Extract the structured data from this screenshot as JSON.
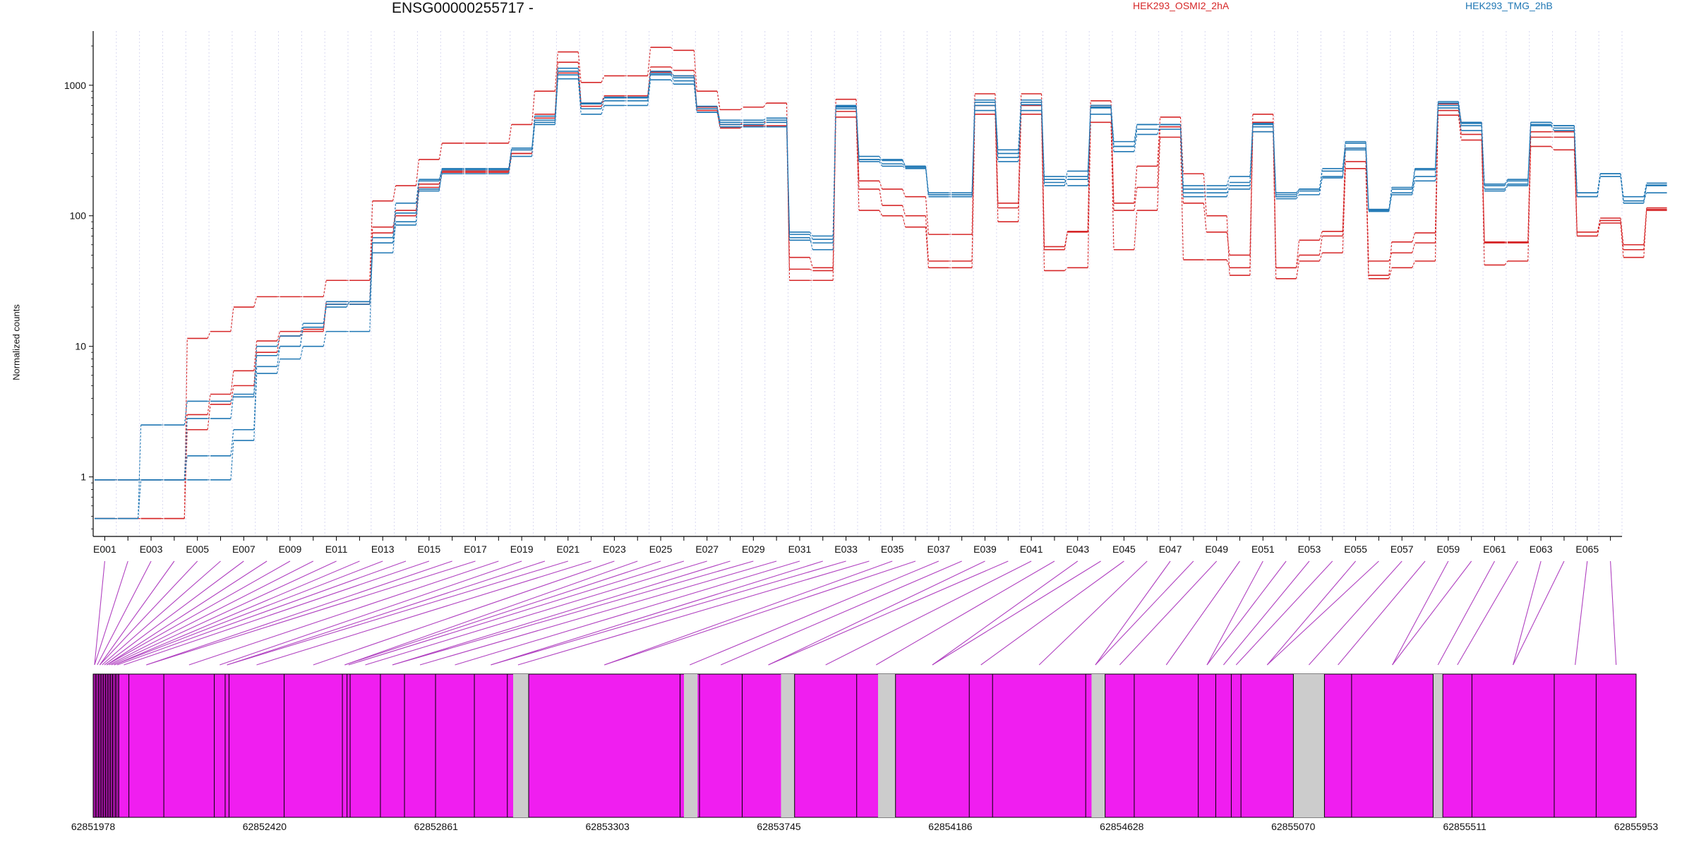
{
  "chart_data": {
    "type": "line",
    "title": "ENSG00000255717 -",
    "ylabel": "Normalized counts",
    "yscale": "log",
    "ylim": [
      0.35,
      2600
    ],
    "yticks": [
      1,
      10,
      100,
      1000
    ],
    "ytick_labels": [
      "1",
      "10",
      "100",
      "1000"
    ],
    "exon_tick_labels": [
      "E001",
      "E003",
      "E005",
      "E007",
      "E009",
      "E011",
      "E013",
      "E015",
      "E017",
      "E019",
      "E021",
      "E023",
      "E025",
      "E027",
      "E029",
      "E031",
      "E033",
      "E035",
      "E037",
      "E039",
      "E041",
      "E043",
      "E045",
      "E047",
      "E049",
      "E051",
      "E053",
      "E055",
      "E057",
      "E059",
      "E061",
      "E063",
      "E065"
    ],
    "exon_count": 66,
    "colors": {
      "condition_a": "#d62728",
      "condition_b": "#1f77b4",
      "exon_fill": "#f01ef0",
      "intron_gap": "#cccccc",
      "connector": "#b040c0"
    },
    "legend": [
      {
        "name": "HEK293_OSMI2_2hA",
        "color": "#d62728"
      },
      {
        "name": "HEK293_TMG_2hB",
        "color": "#1f77b4"
      }
    ],
    "series": [
      {
        "name": "HEK293_OSMI2_2hA",
        "color": "#d62728",
        "values": [
          0.48,
          0.48,
          0.48,
          0.48,
          11.5,
          13,
          20,
          24,
          24,
          24,
          32,
          32,
          130,
          170,
          270,
          360,
          360,
          360,
          500,
          900,
          1800,
          1050,
          1180,
          1180,
          1950,
          1850,
          900,
          650,
          680,
          730,
          32,
          32,
          780,
          185,
          160,
          140,
          72,
          72,
          860,
          125,
          860,
          58,
          76,
          760,
          125,
          240,
          570,
          210,
          100,
          35,
          600,
          40,
          65,
          76,
          330,
          35,
          63,
          74,
          720,
          520,
          62,
          62,
          440,
          440,
          75,
          96,
          60,
          115
        ]
      },
      {
        "name": "HEK293_OSMI2_2hA",
        "color": "#d62728",
        "values": [
          0.95,
          0.95,
          0.95,
          0.95,
          3.0,
          4.3,
          6.5,
          11,
          13,
          13.5,
          22,
          22,
          82,
          100,
          165,
          215,
          215,
          215,
          300,
          560,
          1240,
          690,
          800,
          800,
          1260,
          1180,
          640,
          470,
          490,
          490,
          48,
          40,
          630,
          160,
          120,
          100,
          45,
          45,
          700,
          115,
          700,
          55,
          75,
          700,
          110,
          165,
          480,
          125,
          75,
          50,
          520,
          40,
          50,
          70,
          260,
          45,
          52,
          62,
          640,
          420,
          63,
          63,
          400,
          400,
          70,
          92,
          55,
          110
        ]
      },
      {
        "name": "HEK293_OSMI2_2hA",
        "color": "#d62728",
        "values": [
          0.48,
          0.48,
          0.48,
          0.48,
          2.3,
          3.6,
          5.0,
          9.0,
          12,
          13,
          21,
          21,
          74,
          110,
          175,
          220,
          220,
          220,
          300,
          600,
          1500,
          730,
          830,
          830,
          1380,
          1300,
          680,
          500,
          520,
          520,
          39,
          38,
          570,
          110,
          100,
          82,
          40,
          40,
          600,
          90,
          600,
          38,
          40,
          520,
          55,
          110,
          400,
          46,
          46,
          40,
          440,
          33,
          45,
          52,
          230,
          33,
          40,
          45,
          590,
          380,
          42,
          45,
          340,
          320,
          70,
          88,
          48,
          112
        ]
      },
      {
        "name": "HEK293_TMG_2hB",
        "color": "#1f77b4",
        "values": [
          0.48,
          0.48,
          2.5,
          2.5,
          3.8,
          3.8,
          4.1,
          8.5,
          10,
          14,
          20,
          22,
          52,
          90,
          155,
          230,
          230,
          230,
          330,
          520,
          1200,
          660,
          760,
          760,
          1200,
          1080,
          620,
          500,
          500,
          520,
          65,
          62,
          690,
          260,
          240,
          230,
          140,
          140,
          700,
          260,
          710,
          170,
          220,
          600,
          310,
          420,
          500,
          140,
          140,
          170,
          480,
          140,
          155,
          195,
          320,
          110,
          150,
          200,
          700,
          510,
          160,
          175,
          500,
          470,
          140,
          210,
          125,
          170
        ]
      },
      {
        "name": "HEK293_TMG_2hB",
        "color": "#1f77b4",
        "values": [
          0.48,
          0.48,
          0.95,
          0.95,
          0.95,
          0.95,
          1.9,
          6.2,
          8.0,
          10,
          13,
          13,
          62,
          85,
          160,
          210,
          210,
          210,
          285,
          500,
          1120,
          600,
          700,
          700,
          1100,
          1020,
          620,
          480,
          480,
          480,
          68,
          55,
          680,
          270,
          250,
          235,
          145,
          145,
          640,
          280,
          640,
          190,
          170,
          680,
          340,
          460,
          460,
          150,
          150,
          160,
          440,
          135,
          145,
          200,
          330,
          108,
          145,
          185,
          670,
          450,
          155,
          170,
          490,
          450,
          140,
          200,
          130,
          150
        ]
      },
      {
        "name": "HEK293_TMG_2hB",
        "color": "#1f77b4",
        "values": [
          0.95,
          0.95,
          0.95,
          0.95,
          1.45,
          1.45,
          2.3,
          7.0,
          10,
          14,
          22,
          22,
          62,
          105,
          185,
          225,
          225,
          225,
          320,
          540,
          1350,
          720,
          810,
          810,
          1230,
          1140,
          660,
          540,
          540,
          560,
          75,
          70,
          700,
          285,
          265,
          240,
          150,
          150,
          770,
          320,
          770,
          200,
          200,
          700,
          370,
          500,
          500,
          170,
          170,
          200,
          500,
          150,
          160,
          230,
          360,
          112,
          165,
          230,
          730,
          490,
          175,
          190,
          520,
          490,
          150,
          210,
          140,
          178
        ]
      },
      {
        "name": "HEK293_TMG_2hB",
        "color": "#1f77b4",
        "values": [
          0.95,
          0.95,
          0.95,
          0.95,
          2.8,
          2.8,
          4.3,
          10,
          12,
          15,
          21,
          21,
          68,
          125,
          190,
          230,
          230,
          230,
          320,
          580,
          1280,
          730,
          800,
          800,
          1280,
          1180,
          690,
          520,
          520,
          540,
          72,
          66,
          660,
          270,
          270,
          240,
          145,
          145,
          740,
          300,
          740,
          180,
          190,
          670,
          340,
          500,
          500,
          160,
          160,
          180,
          510,
          145,
          160,
          220,
          370,
          112,
          160,
          225,
          750,
          520,
          170,
          185,
          520,
          490,
          150,
          210,
          130,
          172
        ]
      }
    ],
    "genomic_axis": {
      "start": 62851978,
      "end": 62855953,
      "tick_labels": [
        "62851978",
        "62852420",
        "62852861",
        "62853303",
        "62853745",
        "62854186",
        "62854628",
        "62855070",
        "62855511",
        "62855953"
      ]
    },
    "gene_model_gaps_genomic": [
      [
        62853060,
        62853100
      ],
      [
        62853500,
        62853535
      ],
      [
        62853750,
        62853785
      ],
      [
        62854000,
        62854045
      ],
      [
        62854550,
        62854585
      ],
      [
        62855070,
        62855150
      ],
      [
        62855430,
        62855455
      ]
    ]
  }
}
